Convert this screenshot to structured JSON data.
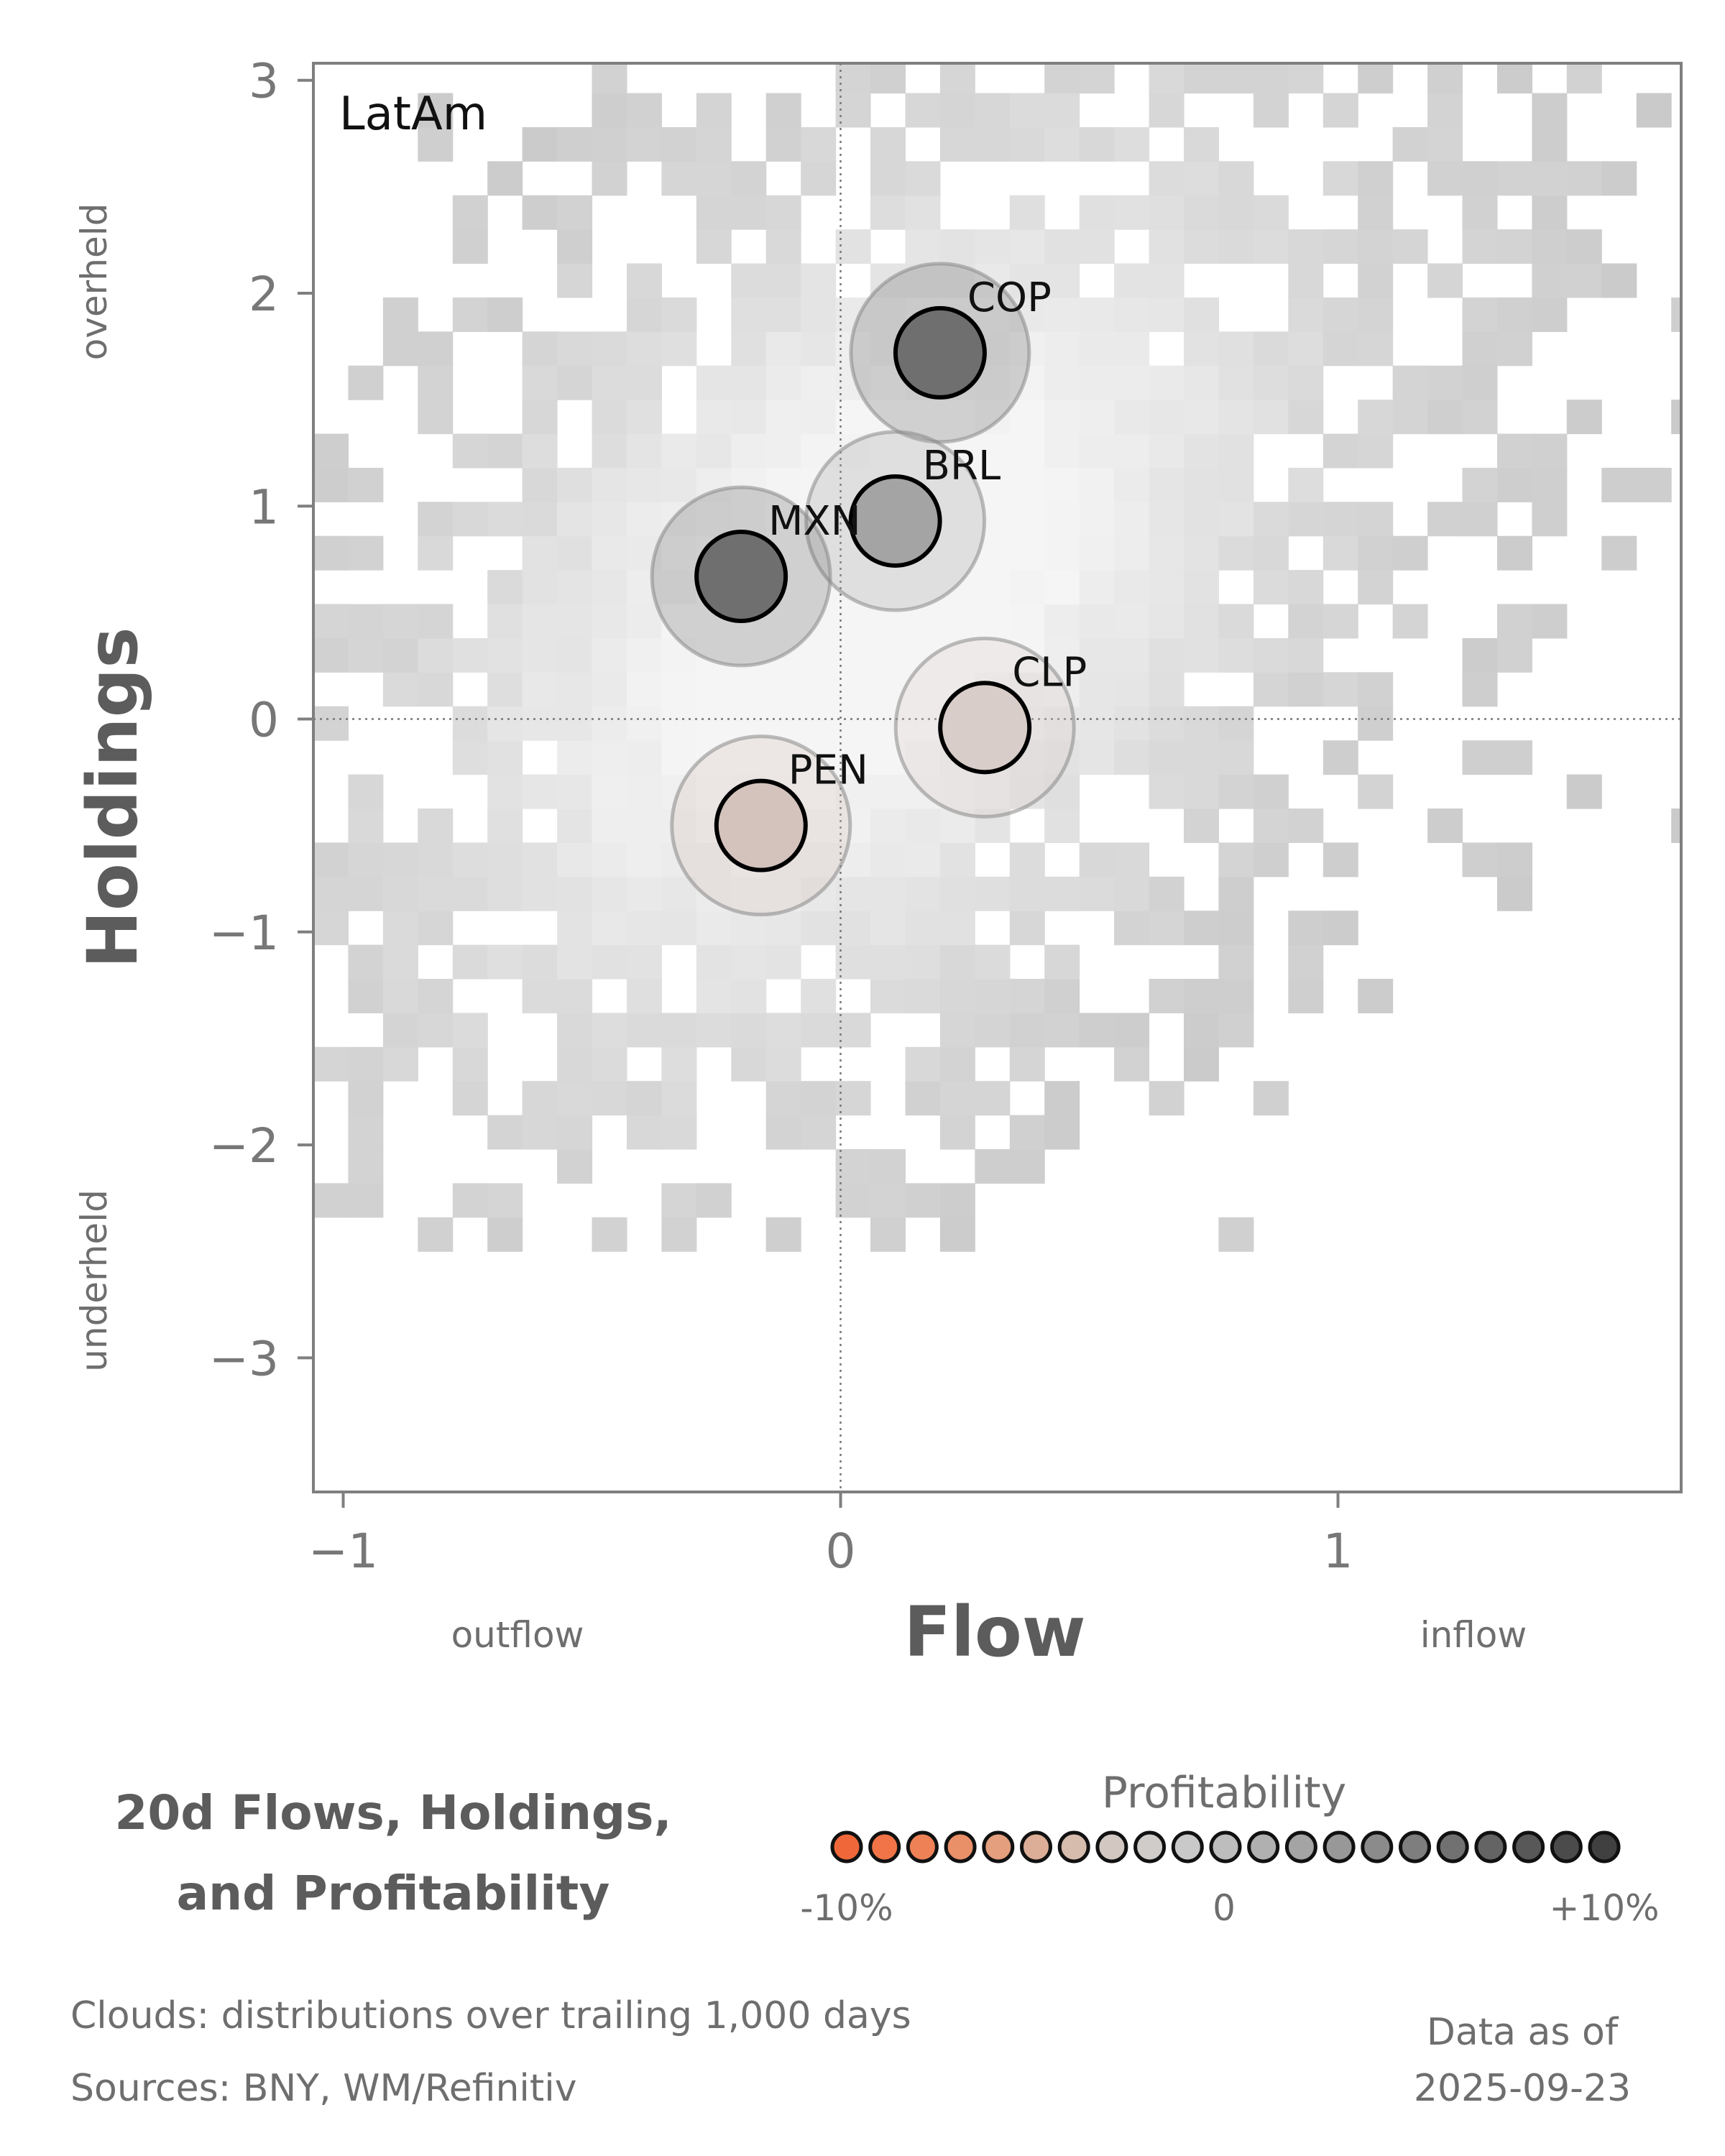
{
  "chart_data": {
    "type": "scatter",
    "region_label": "LatAm",
    "xlabel": "Flow",
    "ylabel": "Holdings",
    "xlim": [
      -1.06,
      1.69
    ],
    "ylim": [
      -3.63,
      3.08
    ],
    "x_ticks": [
      {
        "value": -1,
        "label": "−1"
      },
      {
        "value": 0,
        "label": "0"
      },
      {
        "value": 1,
        "label": "1"
      }
    ],
    "y_ticks": [
      {
        "value": 3,
        "label": "3"
      },
      {
        "value": 2,
        "label": "2"
      },
      {
        "value": 1,
        "label": "1"
      },
      {
        "value": 0,
        "label": "0"
      },
      {
        "value": -1,
        "label": "−1"
      },
      {
        "value": -2,
        "label": "−2"
      },
      {
        "value": -3,
        "label": "−3"
      }
    ],
    "x_side_labels": {
      "left": "outflow",
      "right": "inflow"
    },
    "y_side_labels": {
      "top": "overheld",
      "bottom": "underheld"
    },
    "points": [
      {
        "label": "COP",
        "x": 0.2,
        "y": 1.72,
        "profitability": 0.075,
        "color": "#6f6f6f"
      },
      {
        "label": "BRL",
        "x": 0.11,
        "y": 0.93,
        "profitability": 0.035,
        "color": "#a4a4a4"
      },
      {
        "label": "MXN",
        "x": -0.2,
        "y": 0.67,
        "profitability": 0.075,
        "color": "#6f6f6f"
      },
      {
        "label": "CLP",
        "x": 0.29,
        "y": -0.04,
        "profitability": -0.012,
        "color": "#d8cdc8"
      },
      {
        "label": "PEN",
        "x": -0.16,
        "y": -0.5,
        "profitability": -0.02,
        "color": "#d3c3bc"
      }
    ],
    "cloud_description_bins": {
      "x_bin": 0.07,
      "y_bin": 0.16
    },
    "zero_lines": true,
    "legend": {
      "title": "Profitability",
      "tick_labels": [
        "-10%",
        "0",
        "+10%"
      ],
      "colors": [
        "#f0683a",
        "#f07447",
        "#ee8256",
        "#e99068",
        "#e39f7e",
        "#dcae97",
        "#d6bcad",
        "#d2c8c1",
        "#d0ccca",
        "#c9c9c9",
        "#bdbdbd",
        "#b0b0b0",
        "#a4a4a4",
        "#989898",
        "#8b8b8b",
        "#7e7e7e",
        "#717171",
        "#646464",
        "#585858",
        "#4b4b4b",
        "#404040"
      ]
    }
  },
  "footer": {
    "title_line1": "20d Flows, Holdings,",
    "title_line2": "and Profitability",
    "clouds_note": "Clouds:  distributions over trailing 1,000 days",
    "sources_note": "Sources:  BNY, WM/Refinitiv",
    "data_as_of_label": "Data as of",
    "data_as_of_date": "2025-09-23"
  }
}
